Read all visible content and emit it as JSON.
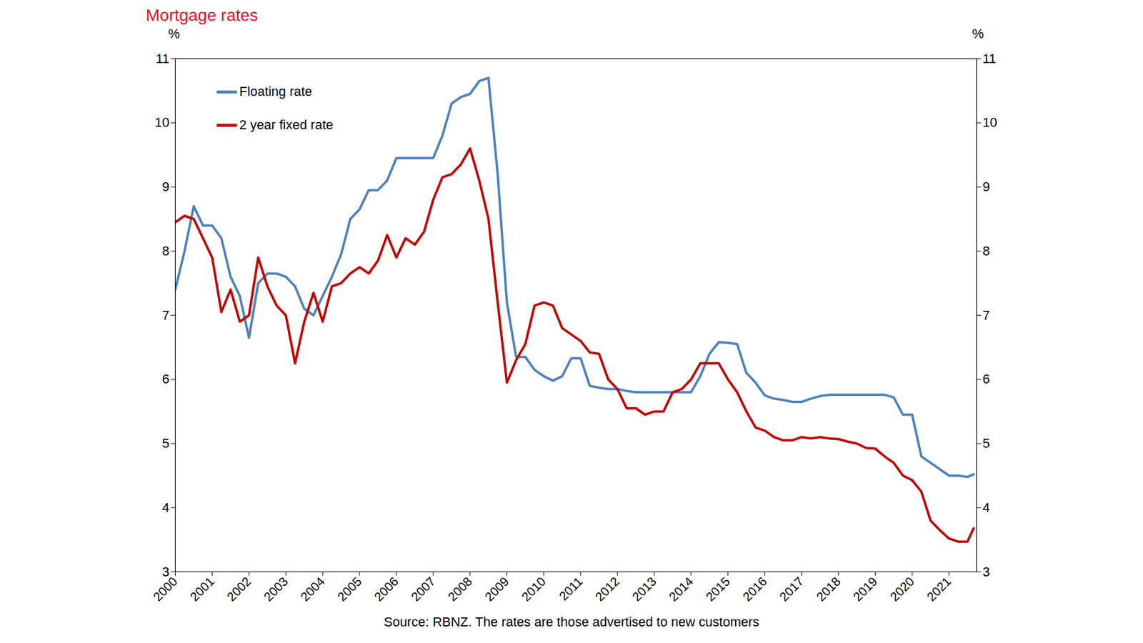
{
  "chart_data": {
    "type": "line",
    "title": "Mortgage rates",
    "caption": "Source: RBNZ. The rates are those advertised to new customers",
    "y_label": "%",
    "x": [
      2000,
      2000.25,
      2000.5,
      2000.75,
      2001,
      2001.25,
      2001.5,
      2001.75,
      2002,
      2002.25,
      2002.5,
      2002.75,
      2003,
      2003.25,
      2003.5,
      2003.75,
      2004,
      2004.25,
      2004.5,
      2004.75,
      2005,
      2005.25,
      2005.5,
      2005.75,
      2006,
      2006.25,
      2006.5,
      2006.75,
      2007,
      2007.25,
      2007.5,
      2007.75,
      2008,
      2008.25,
      2008.5,
      2008.75,
      2009,
      2009.25,
      2009.5,
      2009.75,
      2010,
      2010.25,
      2010.5,
      2010.75,
      2011,
      2011.25,
      2011.5,
      2011.75,
      2012,
      2012.25,
      2012.5,
      2012.75,
      2013,
      2013.25,
      2013.5,
      2013.75,
      2014,
      2014.25,
      2014.5,
      2014.75,
      2015,
      2015.25,
      2015.5,
      2015.75,
      2016,
      2016.25,
      2016.5,
      2016.75,
      2017,
      2017.25,
      2017.5,
      2017.75,
      2018,
      2018.25,
      2018.5,
      2018.75,
      2019,
      2019.25,
      2019.5,
      2019.75,
      2020,
      2020.25,
      2020.5,
      2020.75,
      2021,
      2021.25,
      2021.5,
      2021.67
    ],
    "series": [
      {
        "name": "Floating rate",
        "color": "#4f81bd",
        "values": [
          7.4,
          8.0,
          8.7,
          8.4,
          8.4,
          8.2,
          7.6,
          7.3,
          6.65,
          7.5,
          7.65,
          7.65,
          7.6,
          7.45,
          7.1,
          7.0,
          7.3,
          7.6,
          7.95,
          8.5,
          8.65,
          8.95,
          8.95,
          9.1,
          9.45,
          9.45,
          9.45,
          9.45,
          9.45,
          9.8,
          10.3,
          10.4,
          10.45,
          10.65,
          10.7,
          9.2,
          7.2,
          6.35,
          6.35,
          6.15,
          6.05,
          5.98,
          6.05,
          6.33,
          6.33,
          5.9,
          5.87,
          5.85,
          5.85,
          5.82,
          5.8,
          5.8,
          5.8,
          5.8,
          5.8,
          5.8,
          5.8,
          6.05,
          6.4,
          6.58,
          6.57,
          6.55,
          6.1,
          5.95,
          5.75,
          5.7,
          5.68,
          5.65,
          5.65,
          5.7,
          5.74,
          5.76,
          5.76,
          5.76,
          5.76,
          5.76,
          5.76,
          5.76,
          5.72,
          5.45,
          5.45,
          4.8,
          4.7,
          4.6,
          4.5,
          4.5,
          4.48,
          4.52
        ]
      },
      {
        "name": "2 year fixed rate",
        "color": "#c00000",
        "values": [
          8.45,
          8.55,
          8.5,
          8.2,
          7.9,
          7.05,
          7.4,
          6.9,
          7.0,
          7.9,
          7.45,
          7.15,
          7.0,
          6.25,
          6.9,
          7.35,
          6.9,
          7.45,
          7.5,
          7.65,
          7.75,
          7.65,
          7.85,
          8.25,
          7.9,
          8.2,
          8.1,
          8.3,
          8.8,
          9.15,
          9.2,
          9.35,
          9.6,
          9.1,
          8.5,
          7.2,
          5.95,
          6.3,
          6.55,
          7.15,
          7.2,
          7.15,
          6.8,
          6.7,
          6.6,
          6.42,
          6.4,
          6.0,
          5.85,
          5.55,
          5.55,
          5.45,
          5.5,
          5.5,
          5.8,
          5.85,
          6.0,
          6.25,
          6.25,
          6.25,
          6.0,
          5.8,
          5.5,
          5.25,
          5.2,
          5.1,
          5.05,
          5.05,
          5.1,
          5.08,
          5.1,
          5.08,
          5.07,
          5.03,
          5.0,
          4.93,
          4.92,
          4.8,
          4.7,
          4.5,
          4.43,
          4.25,
          3.8,
          3.65,
          3.52,
          3.47,
          3.47,
          3.68
        ]
      }
    ],
    "xlim": [
      2000,
      2021.75
    ],
    "xticks": [
      2000,
      2001,
      2002,
      2003,
      2004,
      2005,
      2006,
      2007,
      2008,
      2009,
      2010,
      2011,
      2012,
      2013,
      2014,
      2015,
      2016,
      2017,
      2018,
      2019,
      2020,
      2021
    ],
    "ylim": [
      3,
      11
    ],
    "yticks": [
      3,
      4,
      5,
      6,
      7,
      8,
      9,
      10,
      11
    ],
    "grid": false,
    "legend": "top-left"
  }
}
